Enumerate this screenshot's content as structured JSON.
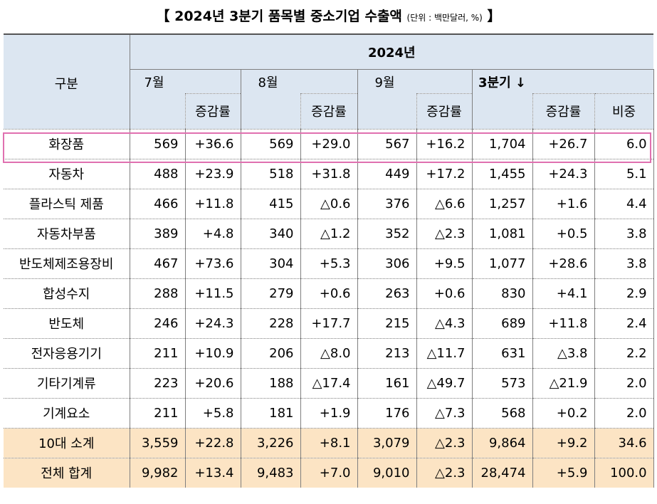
{
  "title": {
    "main": "【 2024년 3분기 품목별 중소기업 수출액",
    "unit": "(단위 : 백만달러, %)",
    "close": "】"
  },
  "header": {
    "category": "구분",
    "year": "2024년",
    "jul": "7월",
    "aug": "8월",
    "sep": "9월",
    "q3": "3분기",
    "q3_sort_icon": "↓",
    "growth": "증감률",
    "share": "비중"
  },
  "rows": [
    {
      "name": "화장품",
      "jul": "569",
      "jul_g": "+36.6",
      "aug": "569",
      "aug_g": "+29.0",
      "sep": "567",
      "sep_g": "+16.2",
      "q3": "1,704",
      "q3_g": "+26.7",
      "share": "6.0"
    },
    {
      "name": "자동차",
      "jul": "488",
      "jul_g": "+23.9",
      "aug": "518",
      "aug_g": "+31.8",
      "sep": "449",
      "sep_g": "+17.2",
      "q3": "1,455",
      "q3_g": "+24.3",
      "share": "5.1"
    },
    {
      "name": "플라스틱 제품",
      "jul": "466",
      "jul_g": "+11.8",
      "aug": "415",
      "aug_g": "△0.6",
      "sep": "376",
      "sep_g": "△6.6",
      "q3": "1,257",
      "q3_g": "+1.6",
      "share": "4.4"
    },
    {
      "name": "자동차부품",
      "jul": "389",
      "jul_g": "+4.8",
      "aug": "340",
      "aug_g": "△1.2",
      "sep": "352",
      "sep_g": "△2.3",
      "q3": "1,081",
      "q3_g": "+0.5",
      "share": "3.8"
    },
    {
      "name": "반도체제조용장비",
      "jul": "467",
      "jul_g": "+73.6",
      "aug": "304",
      "aug_g": "+5.3",
      "sep": "306",
      "sep_g": "+9.5",
      "q3": "1,077",
      "q3_g": "+28.6",
      "share": "3.8"
    },
    {
      "name": "합성수지",
      "jul": "288",
      "jul_g": "+11.5",
      "aug": "279",
      "aug_g": "+0.6",
      "sep": "263",
      "sep_g": "+0.6",
      "q3": "830",
      "q3_g": "+4.1",
      "share": "2.9"
    },
    {
      "name": "반도체",
      "jul": "246",
      "jul_g": "+24.3",
      "aug": "228",
      "aug_g": "+17.7",
      "sep": "215",
      "sep_g": "△4.3",
      "q3": "689",
      "q3_g": "+11.8",
      "share": "2.4"
    },
    {
      "name": "전자응용기기",
      "jul": "211",
      "jul_g": "+10.9",
      "aug": "206",
      "aug_g": "△8.0",
      "sep": "213",
      "sep_g": "△11.7",
      "q3": "631",
      "q3_g": "△3.8",
      "share": "2.2"
    },
    {
      "name": "기타기계류",
      "jul": "223",
      "jul_g": "+20.6",
      "aug": "188",
      "aug_g": "△17.4",
      "sep": "161",
      "sep_g": "△49.7",
      "q3": "573",
      "q3_g": "△21.9",
      "share": "2.0"
    },
    {
      "name": "기계요소",
      "jul": "211",
      "jul_g": "+5.8",
      "aug": "181",
      "aug_g": "+1.9",
      "sep": "176",
      "sep_g": "△7.3",
      "q3": "568",
      "q3_g": "+0.2",
      "share": "2.0"
    }
  ],
  "summary": [
    {
      "name": "10대 소계",
      "jul": "3,559",
      "jul_g": "+22.8",
      "aug": "3,226",
      "aug_g": "+8.1",
      "sep": "3,079",
      "sep_g": "△2.3",
      "q3": "9,864",
      "q3_g": "+9.2",
      "share": "34.6"
    },
    {
      "name": "전체 합계",
      "jul": "9,982",
      "jul_g": "+13.4",
      "aug": "9,483",
      "aug_g": "+7.0",
      "sep": "9,010",
      "sep_g": "△2.3",
      "q3": "28,474",
      "q3_g": "+5.9",
      "share": "100.0"
    }
  ],
  "colors": {
    "header_bg": "#dce6f1",
    "summary_bg": "#fce4c4",
    "highlight_border": "#e070b0"
  }
}
